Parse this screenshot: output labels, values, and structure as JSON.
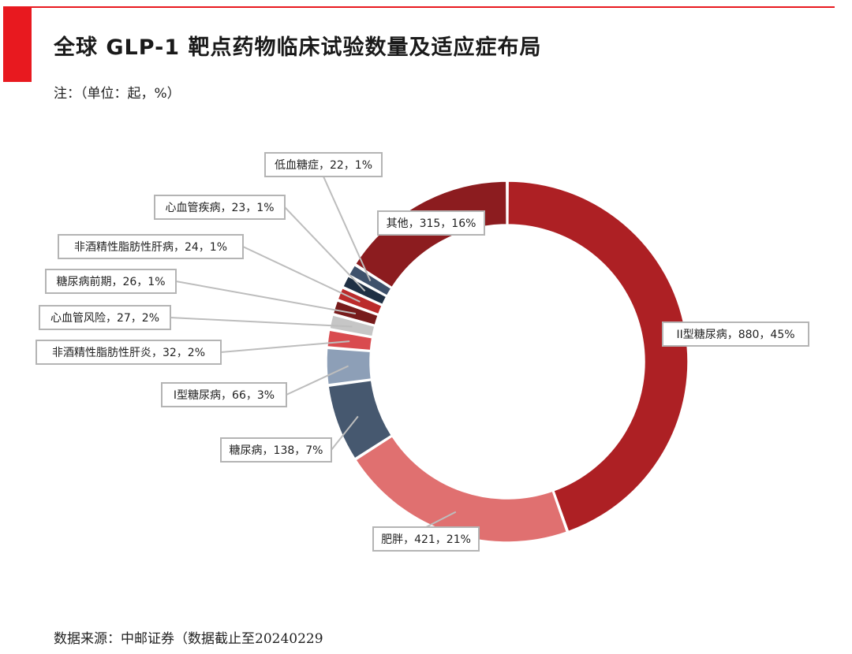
{
  "header": {
    "title": "全球 GLP-1 靶点药物临床试验数量及适应症布局",
    "note": "注：（单位：起，%）"
  },
  "footer": {
    "source": "数据来源：中邮证券（数据截止至20240229"
  },
  "colors": {
    "accent": "#e8191f",
    "label_border": "#b4b4b4",
    "leader_line": "#bdbdbd"
  },
  "chart_data": {
    "type": "pie",
    "variant": "donut",
    "unit": "起",
    "categories": [
      "II型糖尿病",
      "肥胖",
      "糖尿病",
      "I型糖尿病",
      "非酒精性脂肪性肝炎",
      "心血管风险",
      "糖尿病前期",
      "非酒精性脂肪性肝病",
      "心血管疾病",
      "低血糖症",
      "其他"
    ],
    "values": [
      880,
      421,
      138,
      66,
      32,
      27,
      26,
      24,
      23,
      22,
      315
    ],
    "percents": [
      45,
      21,
      7,
      3,
      2,
      2,
      1,
      1,
      1,
      1,
      16
    ],
    "slice_colors": [
      "#ad2024",
      "#e07070",
      "#46586f",
      "#8d9fb7",
      "#d94b4f",
      "#c6c6c6",
      "#771b1b",
      "#bb2b2b",
      "#1f3044",
      "#3e516b",
      "#8c1c1f"
    ],
    "labels": [
      "II型糖尿病，880，45%",
      "肥胖，421，21%",
      "糖尿病，138，7%",
      "I型糖尿病，66，3%",
      "非酒精性脂肪性肝炎，32，2%",
      "心血管风险，27，2%",
      "糖尿病前期，26，1%",
      "非酒精性脂肪性肝病，24，1%",
      "心血管疾病，23，1%",
      "低血糖症，22，1%",
      "其他，315，16%"
    ]
  }
}
